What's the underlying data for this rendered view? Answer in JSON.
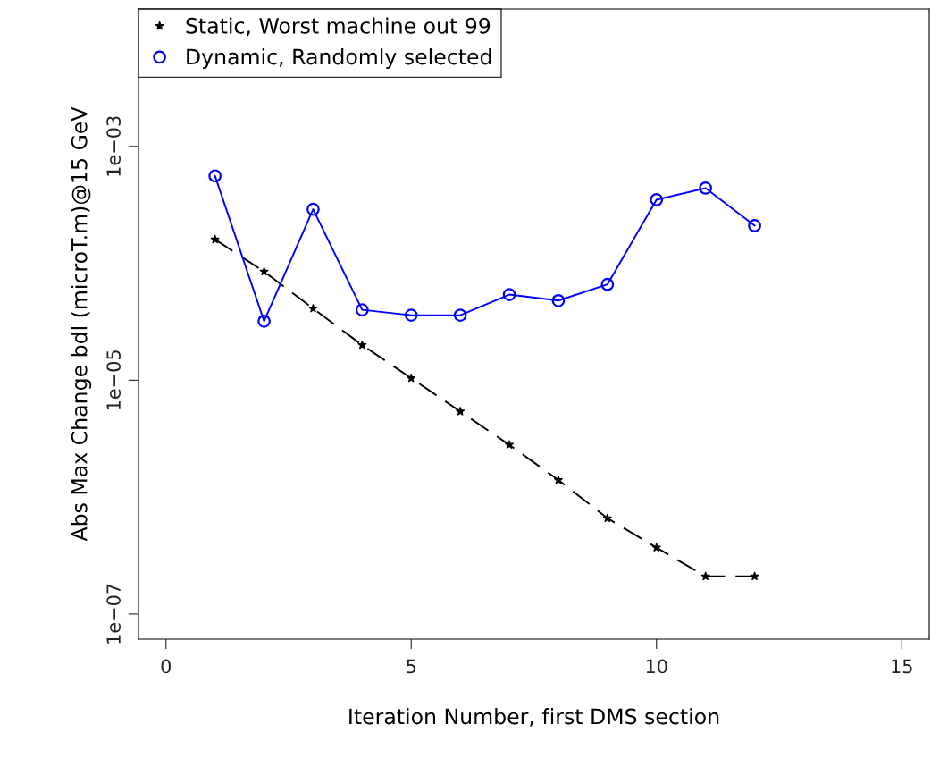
{
  "chart_data": {
    "type": "line",
    "xlabel": "Iteration Number, first DMS section",
    "ylabel": "Abs Max Change bdl (microT.m)@15 GeV",
    "x": [
      1,
      2,
      3,
      4,
      5,
      6,
      7,
      8,
      9,
      10,
      11,
      12
    ],
    "series": [
      {
        "name": "Static, Worst machine out 99",
        "color": "#000000",
        "marker": "star",
        "line_style": "dashed",
        "values": [
          0.00016,
          8.5e-05,
          4.1e-05,
          2e-05,
          1.04e-05,
          5.4e-06,
          2.8e-06,
          1.4e-06,
          6.6e-07,
          3.7e-07,
          2.1e-07,
          2.1e-07
        ]
      },
      {
        "name": "Dynamic, Randomly selected",
        "color": "#0000ff",
        "marker": "circle",
        "line_style": "solid",
        "values": [
          0.00056,
          3.2e-05,
          0.00029,
          4e-05,
          3.6e-05,
          3.6e-05,
          5.4e-05,
          4.8e-05,
          6.6e-05,
          0.00035,
          0.00044,
          0.00021
        ]
      }
    ],
    "log": "y",
    "xlim": [
      -0.56,
      15.56
    ],
    "ylim": [
      6.1e-08,
      0.015
    ],
    "xticks": [
      0,
      5,
      10,
      15
    ],
    "yticks": [
      {
        "value": 1e-07,
        "label": "1e−07"
      },
      {
        "value": 1e-05,
        "label": "1e−05"
      },
      {
        "value": 0.001,
        "label": "1e−03"
      }
    ],
    "grid": false,
    "legend": "top left"
  }
}
